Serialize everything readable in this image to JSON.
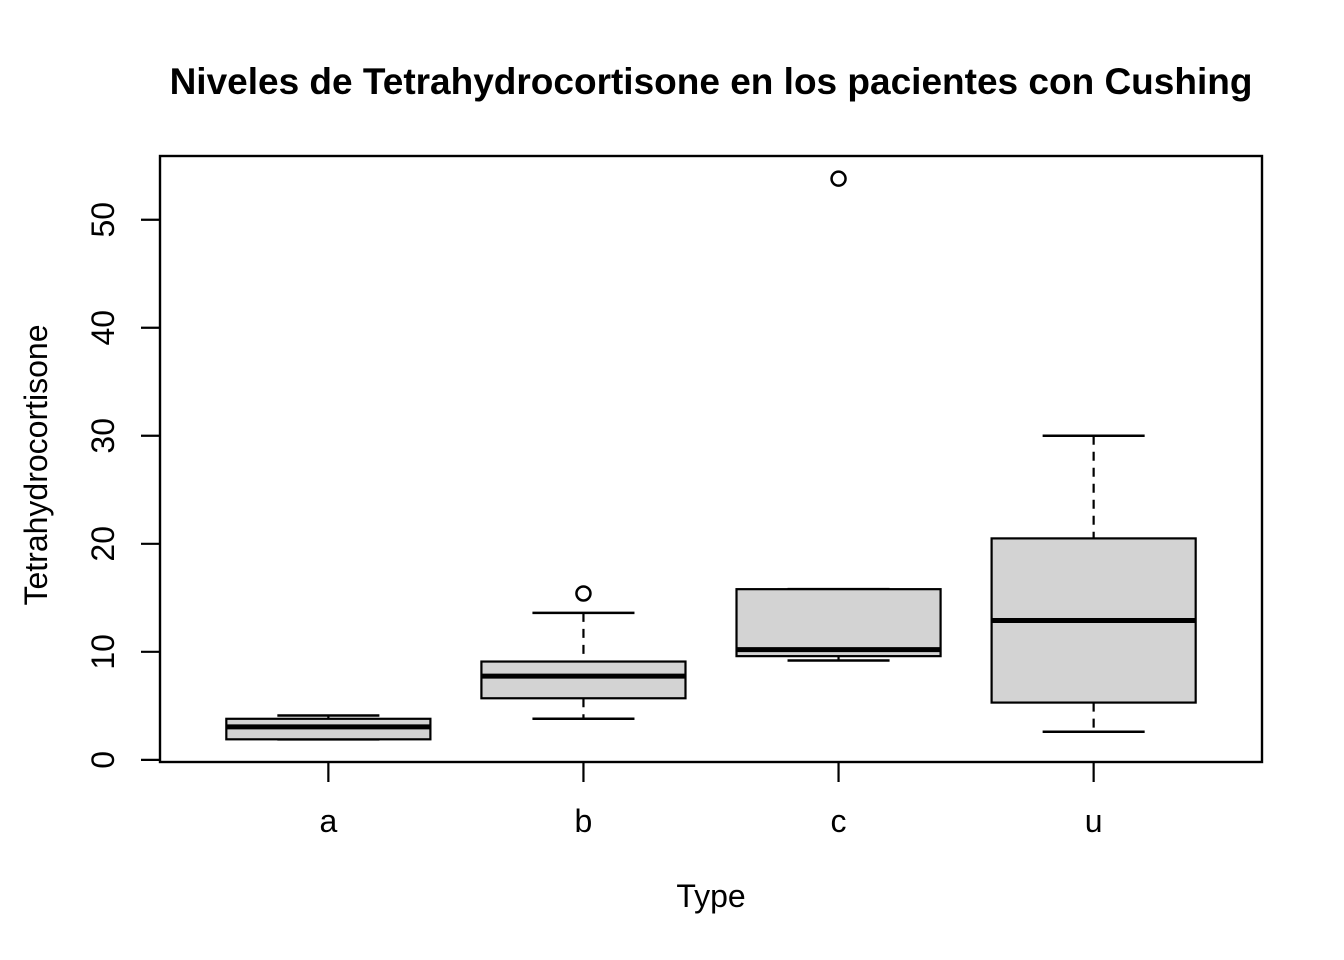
{
  "chart_data": {
    "type": "boxplot",
    "title": "Niveles de Tetrahydrocortisone en los pacientes con Cushing",
    "xlabel": "Type",
    "ylabel": "Tetrahydrocortisone",
    "categories": [
      "a",
      "b",
      "c",
      "u"
    ],
    "y_ticks": [
      0,
      10,
      20,
      30,
      40,
      50
    ],
    "ylim": [
      -0.2,
      55.9
    ],
    "grid": false,
    "legend_position": "none",
    "box_fill_color": "#d3d3d3",
    "line_color": "#000000",
    "background_color": "#ffffff",
    "series": [
      {
        "category": "a",
        "lower_whisker": 1.9,
        "q1": 1.9,
        "median": 3.05,
        "q3": 3.8,
        "upper_whisker": 4.1,
        "outliers": []
      },
      {
        "category": "b",
        "lower_whisker": 3.8,
        "q1": 5.7,
        "median": 7.75,
        "q3": 9.1,
        "upper_whisker": 13.6,
        "outliers": [
          15.4
        ]
      },
      {
        "category": "c",
        "lower_whisker": 9.2,
        "q1": 9.6,
        "median": 10.2,
        "q3": 15.8,
        "upper_whisker": 15.8,
        "outliers": [
          53.8
        ]
      },
      {
        "category": "u",
        "lower_whisker": 2.6,
        "q1": 5.3,
        "median": 12.9,
        "q3": 20.5,
        "upper_whisker": 30.0,
        "outliers": []
      }
    ]
  }
}
